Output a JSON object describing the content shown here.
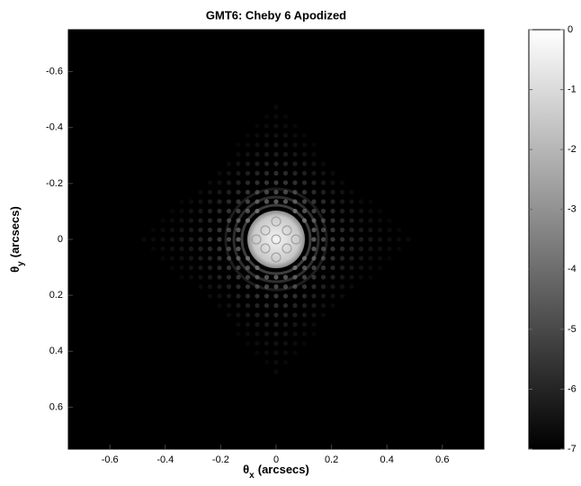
{
  "chart_data": {
    "type": "image",
    "title": "GMT6: Cheby 6 Apodized",
    "xlabel": {
      "symbol": "θ",
      "subscript": "x",
      "text": "(arcsecs)"
    },
    "ylabel": {
      "symbol": "θ",
      "subscript": "y",
      "text": "(arcsecs)"
    },
    "xlim": [
      -0.75,
      0.75
    ],
    "xticks": [
      -0.6,
      -0.4,
      -0.2,
      0,
      0.2,
      0.4,
      0.6
    ],
    "ylim": [
      -0.75,
      0.75
    ],
    "yticks": [
      -0.6,
      -0.4,
      -0.2,
      0,
      0.2,
      0.4,
      0.6
    ],
    "y_reversed": true,
    "colorbar": {
      "lim": [
        -7,
        0
      ],
      "ticks": [
        0,
        -1,
        -2,
        -3,
        -4,
        -5,
        -6,
        -7
      ],
      "colors": [
        "#000000",
        "#ffffff"
      ]
    }
  }
}
